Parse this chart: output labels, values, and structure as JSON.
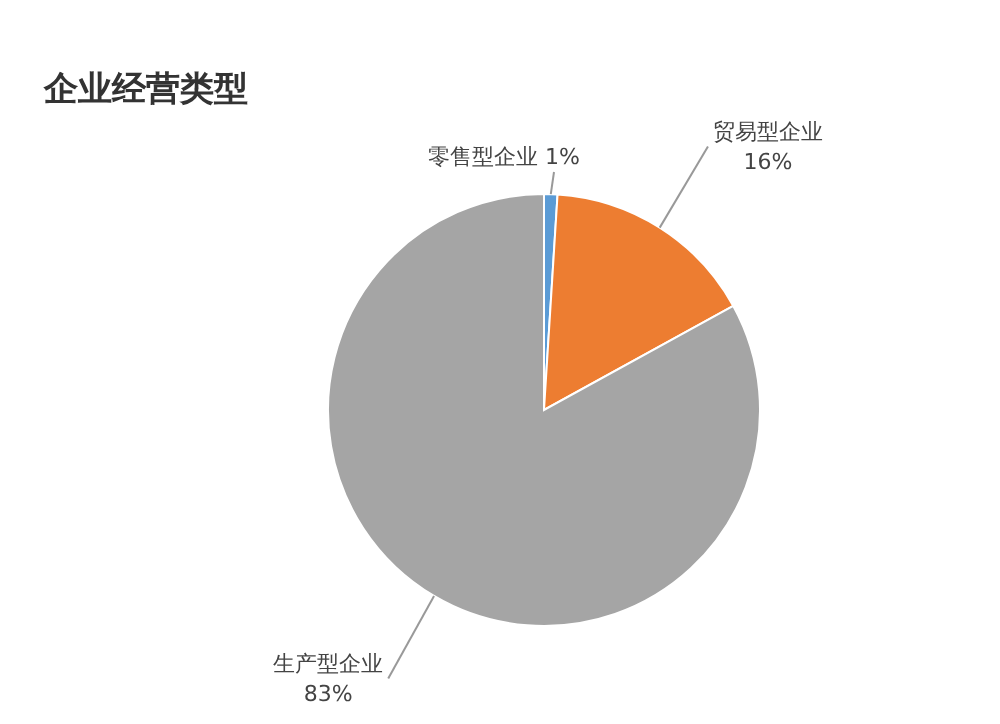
{
  "chart_data": {
    "type": "pie",
    "title": "企业经营类型",
    "categories": [
      "零售型企业",
      "贸易型企业",
      "生产型企业"
    ],
    "values": [
      1,
      16,
      83
    ],
    "colors": [
      "#5b9bd5",
      "#ed7d31",
      "#a5a5a5"
    ],
    "value_labels": [
      "1%",
      "16%",
      "83%"
    ]
  }
}
